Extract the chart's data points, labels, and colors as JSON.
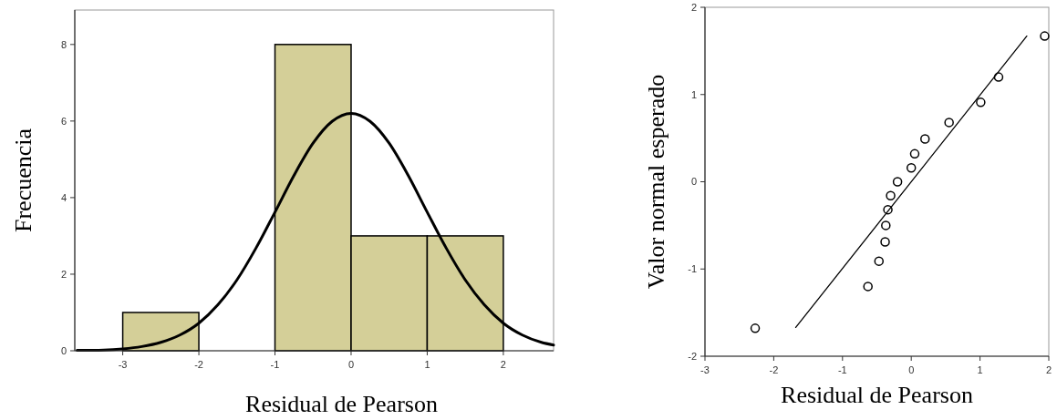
{
  "chart_data": [
    {
      "type": "histogram",
      "xlabel": "Residual de Pearson",
      "ylabel": "Frecuencia",
      "xlim": [
        -3.63,
        2.66
      ],
      "ylim": [
        0,
        8.9
      ],
      "xticks": [
        -3,
        -2,
        -1,
        0,
        1,
        2
      ],
      "yticks": [
        0,
        2,
        4,
        6,
        8
      ],
      "grid": false,
      "series": [
        {
          "type": "histogram",
          "bins": [
            -3,
            -2,
            -1,
            0,
            1,
            2
          ],
          "values": [
            1,
            0,
            8,
            3,
            3
          ],
          "color": "#d4cf98"
        },
        {
          "type": "line",
          "color": "#000000",
          "x": [
            -3.6,
            -3.25,
            -3,
            -2.75,
            -2.5,
            -2.25,
            -2,
            -1.75,
            -1.5,
            -1.25,
            -1,
            -0.75,
            -0.5,
            -0.25,
            0,
            0.25,
            0.5,
            0.75,
            1,
            1.25,
            1.5,
            1.75,
            2,
            2.25,
            2.5,
            2.66
          ],
          "values": [
            0.01,
            0.02,
            0.05,
            0.11,
            0.22,
            0.41,
            0.72,
            1.2,
            1.85,
            2.68,
            3.62,
            4.58,
            5.42,
            5.99,
            6.2,
            5.99,
            5.42,
            4.58,
            3.62,
            2.68,
            1.85,
            1.2,
            0.72,
            0.41,
            0.22,
            0.15
          ]
        }
      ]
    },
    {
      "type": "scatter",
      "xlabel": "Residual de Pearson",
      "ylabel": "Valor normal esperado",
      "xlim": [
        -3,
        2
      ],
      "ylim": [
        -2,
        2
      ],
      "xticks": [
        -3,
        -2,
        -1,
        0,
        1,
        2
      ],
      "yticks": [
        -2,
        -1,
        0,
        1,
        2
      ],
      "grid": false,
      "series": [
        {
          "type": "scatter",
          "marker": "circle",
          "color": "#000000",
          "x": [
            -2.27,
            -0.63,
            -0.47,
            -0.38,
            -0.37,
            -0.34,
            -0.3,
            -0.2,
            0.0,
            0.05,
            0.2,
            0.55,
            1.01,
            1.27,
            1.94
          ],
          "values": [
            -1.68,
            -1.2,
            -0.91,
            -0.69,
            -0.5,
            -0.32,
            -0.16,
            0.0,
            0.16,
            0.32,
            0.49,
            0.68,
            0.91,
            1.2,
            1.67
          ]
        },
        {
          "type": "line",
          "color": "#000000",
          "line_style": "solid",
          "x": [
            -1.68,
            1.68
          ],
          "values": [
            -1.67,
            1.67
          ]
        }
      ]
    }
  ]
}
